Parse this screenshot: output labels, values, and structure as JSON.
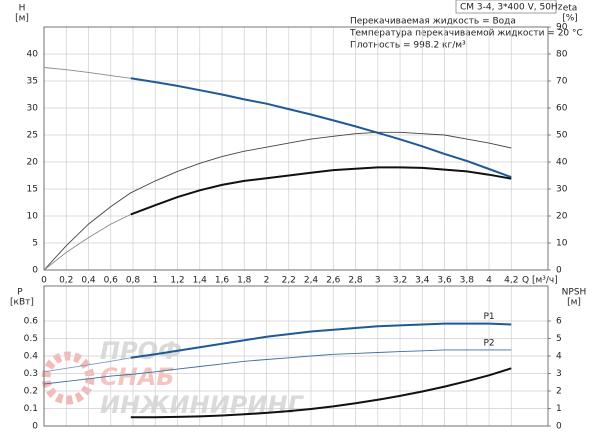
{
  "chart_data": [
    {
      "type": "line",
      "ylabel": "H",
      "yunit": "[м]",
      "y2label": "eta",
      "y2unit": "[%]",
      "xlabel": "Q [м³/ч]",
      "model": "CM 3-4, 3*400 V, 50Hz",
      "info": [
        "Перекачиваемая жидкость = Вода",
        "Температура перекачиваемой жидкости = 20 °C",
        "Плотность = 998.2 кг/м³"
      ],
      "x": [
        0,
        0.2,
        0.4,
        0.6,
        0.78,
        1,
        1.2,
        1.4,
        1.6,
        1.8,
        2,
        2.2,
        2.4,
        2.6,
        2.8,
        3,
        3.2,
        3.4,
        3.6,
        3.8,
        4,
        4.2
      ],
      "xlim": [
        0,
        4.53
      ],
      "xticks": [
        0,
        {
          "value": 0.2,
          "label": "0,2"
        },
        {
          "value": 0.4,
          "label": "0,4"
        },
        {
          "value": 0.6,
          "label": "0,6"
        },
        {
          "value": 0.8,
          "label": "0,8"
        },
        1,
        {
          "value": 1.2,
          "label": "1,2"
        },
        {
          "value": 1.4,
          "label": "1,4"
        },
        {
          "value": 1.6,
          "label": "1,6"
        },
        {
          "value": 1.8,
          "label": "1,8"
        },
        2,
        {
          "value": 2.2,
          "label": "2,2"
        },
        {
          "value": 2.4,
          "label": "2,4"
        },
        {
          "value": 2.6,
          "label": "2,6"
        },
        {
          "value": 2.8,
          "label": "2,8"
        },
        3,
        {
          "value": 3.2,
          "label": "3,2"
        },
        {
          "value": 3.4,
          "label": "3,4"
        },
        {
          "value": 3.6,
          "label": "3,6"
        },
        {
          "value": 3.8,
          "label": "3,8"
        },
        4,
        {
          "value": 4.2,
          "label": "4,2"
        }
      ],
      "ylim": [
        0,
        45
      ],
      "yticks": [
        0,
        5,
        10,
        15,
        20,
        25,
        30,
        35,
        40
      ],
      "y2lim": [
        0,
        90
      ],
      "y2ticks": [
        0,
        10,
        20,
        30,
        40,
        50,
        60,
        70,
        80,
        90
      ],
      "grid": true,
      "series": [
        {
          "color": "#8a8a8a",
          "style": "thin",
          "values": [
            37.5,
            37.1,
            36.6,
            36.0,
            35.5,
            null,
            null,
            null,
            null,
            null,
            null,
            null,
            null,
            null,
            null,
            null,
            null,
            null,
            null,
            null,
            null,
            null
          ]
        },
        {
          "color": "#1f5a96",
          "style": "thick",
          "values": [
            null,
            null,
            null,
            null,
            35.5,
            34.8,
            34.1,
            33.3,
            32.5,
            31.6,
            30.8,
            29.8,
            28.8,
            27.7,
            26.6,
            25.4,
            24.2,
            22.9,
            21.5,
            20.2,
            18.7,
            17.2
          ]
        },
        {
          "color": "#444444",
          "style": "thin",
          "axis": "y2",
          "values": [
            0,
            9,
            17,
            23.5,
            28.6,
            33,
            36.5,
            39.5,
            42,
            44,
            45.5,
            47,
            48.5,
            49.5,
            50.5,
            51,
            51,
            50.5,
            50,
            48.5,
            47,
            45.2
          ]
        },
        {
          "color": "#8a8a8a",
          "style": "thin",
          "axis": "y2",
          "values": [
            0,
            6.5,
            12,
            17,
            20.6,
            null,
            null,
            null,
            null,
            null,
            null,
            null,
            null,
            null,
            null,
            null,
            null,
            null,
            null,
            null,
            null,
            null
          ]
        },
        {
          "color": "#111111",
          "style": "thick",
          "axis": "y2",
          "values": [
            null,
            null,
            null,
            null,
            20.6,
            24,
            27,
            29.5,
            31.5,
            33,
            34,
            35,
            36,
            37,
            37.5,
            38,
            38,
            37.8,
            37.2,
            36.5,
            35.3,
            33.8
          ]
        }
      ]
    },
    {
      "type": "line",
      "ylabel": "P",
      "yunit": "[кВт]",
      "y2label": "NPSH",
      "y2unit": "[м]",
      "x": [
        0,
        0.2,
        0.4,
        0.6,
        0.78,
        1,
        1.2,
        1.4,
        1.6,
        1.8,
        2,
        2.2,
        2.4,
        2.6,
        2.8,
        3,
        3.2,
        3.4,
        3.6,
        3.8,
        4,
        4.2
      ],
      "xlim": [
        0,
        4.53
      ],
      "xticks": [
        0,
        0.2,
        0.4,
        0.6,
        0.8,
        1,
        1.2,
        1.4,
        1.6,
        1.8,
        2,
        2.2,
        2.4,
        2.6,
        2.8,
        3,
        3.2,
        3.4,
        3.6,
        3.8,
        4,
        4.2
      ],
      "ylim": [
        0,
        0.8
      ],
      "yticks": [
        0,
        0.1,
        0.2,
        0.3,
        0.4,
        0.5,
        0.6
      ],
      "y2lim": [
        0,
        8
      ],
      "y2ticks": [
        0,
        1,
        2,
        3,
        4,
        5,
        6
      ],
      "grid": true,
      "series": [
        {
          "color": "#7d9cbf",
          "style": "thin",
          "values": [
            0.31,
            0.33,
            0.35,
            0.37,
            0.39,
            null,
            null,
            null,
            null,
            null,
            null,
            null,
            null,
            null,
            null,
            null,
            null,
            null,
            null,
            null,
            null,
            null
          ]
        },
        {
          "name": "P1",
          "color": "#1f5a96",
          "style": "thick",
          "values": [
            null,
            null,
            null,
            null,
            0.39,
            0.41,
            0.43,
            0.45,
            0.47,
            0.49,
            0.51,
            0.525,
            0.54,
            0.55,
            0.56,
            0.57,
            0.575,
            0.58,
            0.585,
            0.585,
            0.585,
            0.58
          ]
        },
        {
          "name": "P2",
          "color": "#3f6e9e",
          "style": "thin",
          "values": [
            0.24,
            0.255,
            0.27,
            0.285,
            0.295,
            0.31,
            0.325,
            0.34,
            0.355,
            0.37,
            0.38,
            0.39,
            0.4,
            0.41,
            0.415,
            0.42,
            0.425,
            0.43,
            0.435,
            0.435,
            0.435,
            0.435
          ]
        },
        {
          "color": "#111111",
          "style": "thick",
          "axis": "y2",
          "values": [
            null,
            null,
            null,
            null,
            0.5,
            0.5,
            0.52,
            0.55,
            0.6,
            0.67,
            0.75,
            0.85,
            0.97,
            1.12,
            1.3,
            1.5,
            1.72,
            1.97,
            2.25,
            2.56,
            2.9,
            3.3
          ]
        }
      ]
    }
  ],
  "watermark": [
    "ПРОФ",
    "СНАБ",
    "ИНЖИНИРИНГ"
  ]
}
